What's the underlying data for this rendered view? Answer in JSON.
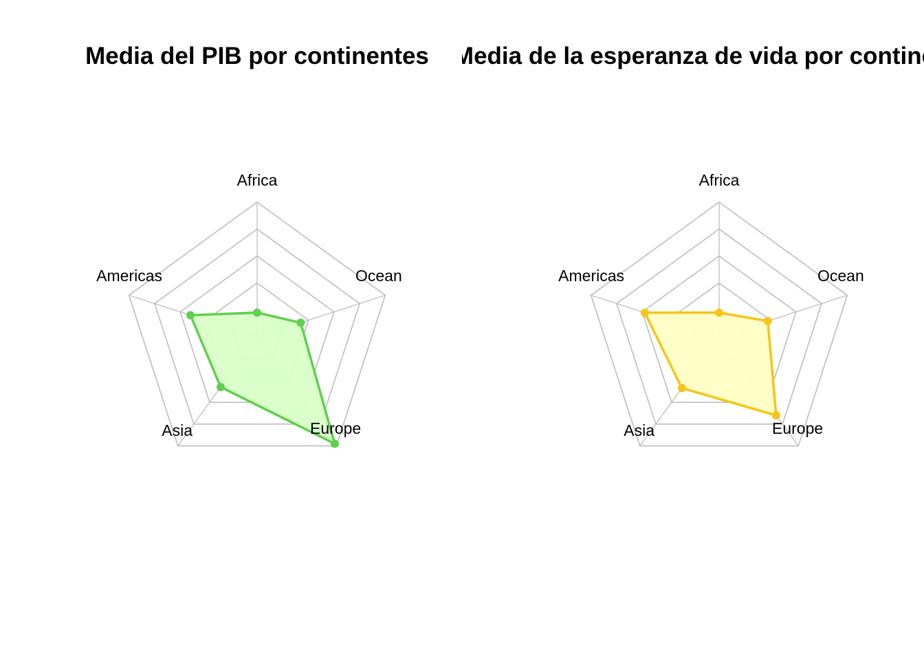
{
  "chart_data": [
    {
      "type": "radar",
      "title": "Media del PIB por continentes",
      "axes": [
        "Africa",
        "Ocean",
        "Europe",
        "Asia",
        "Americas"
      ],
      "values": [
        0.18,
        0.34,
        0.98,
        0.46,
        0.52
      ],
      "scale": [
        0,
        1
      ],
      "grid_levels": 4,
      "color": "#5fcf4f",
      "fill_color": "#d8ffc8"
    },
    {
      "type": "radar",
      "title": "Media de la esperanza de vida por continentes",
      "axes": [
        "Africa",
        "Ocean",
        "Europe",
        "Asia",
        "Americas"
      ],
      "values": [
        0.18,
        0.38,
        0.72,
        0.47,
        0.58
      ],
      "scale": [
        0,
        1
      ],
      "grid_levels": 4,
      "color": "#f5c518",
      "fill_color": "#ffffc4"
    }
  ]
}
